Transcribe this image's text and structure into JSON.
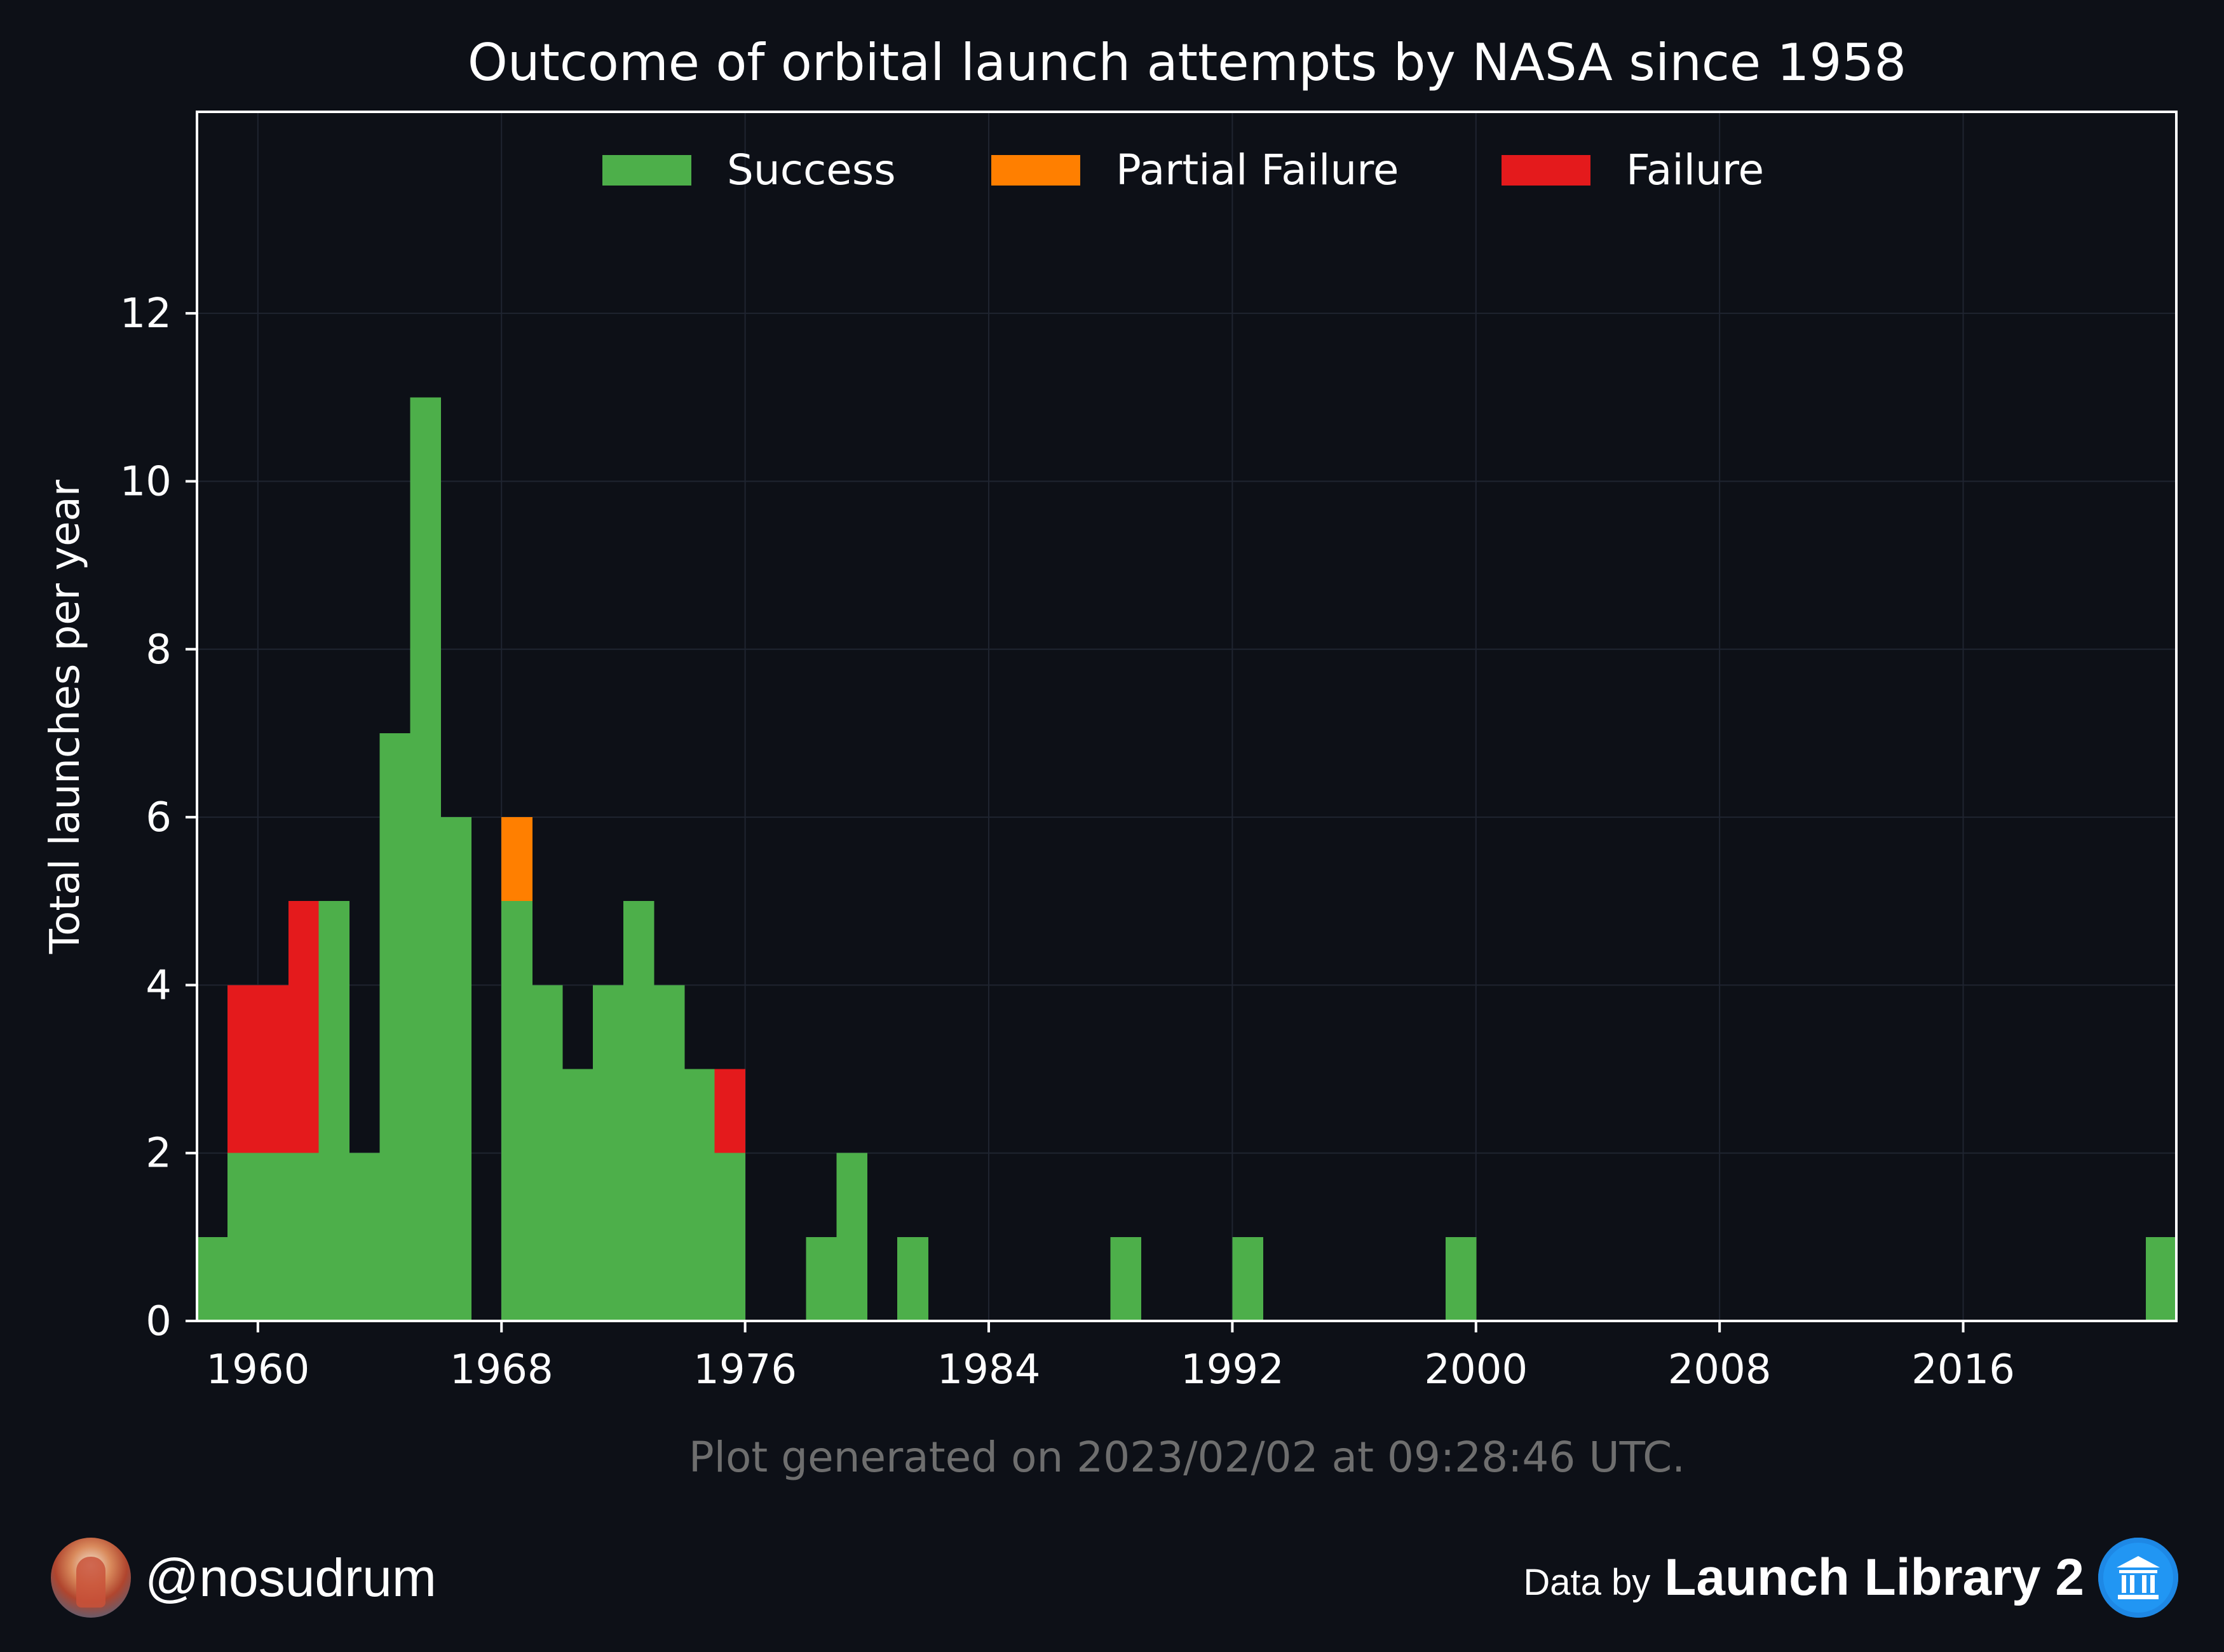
{
  "chart_data": {
    "type": "bar",
    "stacked": true,
    "title": "Outcome of orbital launch attempts by NASA since 1958",
    "xlabel": "",
    "ylabel": "Total launches per year",
    "x": [
      1958,
      1959,
      1960,
      1961,
      1962,
      1963,
      1964,
      1965,
      1966,
      1967,
      1968,
      1969,
      1970,
      1971,
      1972,
      1973,
      1974,
      1975,
      1976,
      1977,
      1978,
      1979,
      1980,
      1981,
      1982,
      1983,
      1984,
      1985,
      1986,
      1987,
      1988,
      1989,
      1990,
      1991,
      1992,
      1993,
      1994,
      1995,
      1996,
      1997,
      1998,
      1999,
      2000,
      2001,
      2002,
      2003,
      2004,
      2005,
      2006,
      2007,
      2008,
      2009,
      2010,
      2011,
      2012,
      2013,
      2014,
      2015,
      2016,
      2017,
      2018,
      2019,
      2020,
      2021,
      2022
    ],
    "series": [
      {
        "name": "Success",
        "color": "#4daf4a",
        "values": [
          1,
          2,
          2,
          2,
          5,
          2,
          7,
          11,
          6,
          0,
          5,
          4,
          3,
          4,
          5,
          4,
          3,
          2,
          0,
          0,
          1,
          2,
          0,
          1,
          0,
          0,
          0,
          0,
          0,
          0,
          1,
          0,
          0,
          0,
          1,
          0,
          0,
          0,
          0,
          0,
          0,
          1,
          0,
          0,
          0,
          0,
          0,
          0,
          0,
          0,
          0,
          0,
          0,
          0,
          0,
          0,
          0,
          0,
          0,
          0,
          0,
          0,
          0,
          0,
          1
        ]
      },
      {
        "name": "Partial Failure",
        "color": "#ff7f00",
        "values": [
          0,
          0,
          0,
          0,
          0,
          0,
          0,
          0,
          0,
          0,
          1,
          0,
          0,
          0,
          0,
          0,
          0,
          0,
          0,
          0,
          0,
          0,
          0,
          0,
          0,
          0,
          0,
          0,
          0,
          0,
          0,
          0,
          0,
          0,
          0,
          0,
          0,
          0,
          0,
          0,
          0,
          0,
          0,
          0,
          0,
          0,
          0,
          0,
          0,
          0,
          0,
          0,
          0,
          0,
          0,
          0,
          0,
          0,
          0,
          0,
          0,
          0,
          0,
          0,
          0
        ]
      },
      {
        "name": "Failure",
        "color": "#e41a1c",
        "values": [
          0,
          2,
          2,
          3,
          0,
          0,
          0,
          0,
          0,
          0,
          0,
          0,
          0,
          0,
          0,
          0,
          0,
          1,
          0,
          0,
          0,
          0,
          0,
          0,
          0,
          0,
          0,
          0,
          0,
          0,
          0,
          0,
          0,
          0,
          0,
          0,
          0,
          0,
          0,
          0,
          0,
          0,
          0,
          0,
          0,
          0,
          0,
          0,
          0,
          0,
          0,
          0,
          0,
          0,
          0,
          0,
          0,
          0,
          0,
          0,
          0,
          0,
          0,
          0,
          0
        ]
      }
    ],
    "xlim": [
      1958,
      2023
    ],
    "ylim": [
      0,
      14.4
    ],
    "xticks": [
      "1960",
      "1968",
      "1976",
      "1984",
      "1992",
      "2000",
      "2008",
      "2016"
    ],
    "yticks": [
      "0",
      "2",
      "4",
      "6",
      "8",
      "10",
      "12"
    ],
    "grid": true,
    "legend_position": "top-center"
  },
  "footer": {
    "generated_note": "Plot generated on 2023/02/02 at 09:28:46 UTC.",
    "handle": "@nosudrum",
    "data_by": "Data by",
    "source_name": "Launch Library 2",
    "avatar_icon": "avatar-photo",
    "source_icon": "bank-icon"
  },
  "colors": {
    "background": "#0d1017",
    "axes": "#ffffff",
    "grid": "#1f2430",
    "note": "#6e6e6e"
  }
}
